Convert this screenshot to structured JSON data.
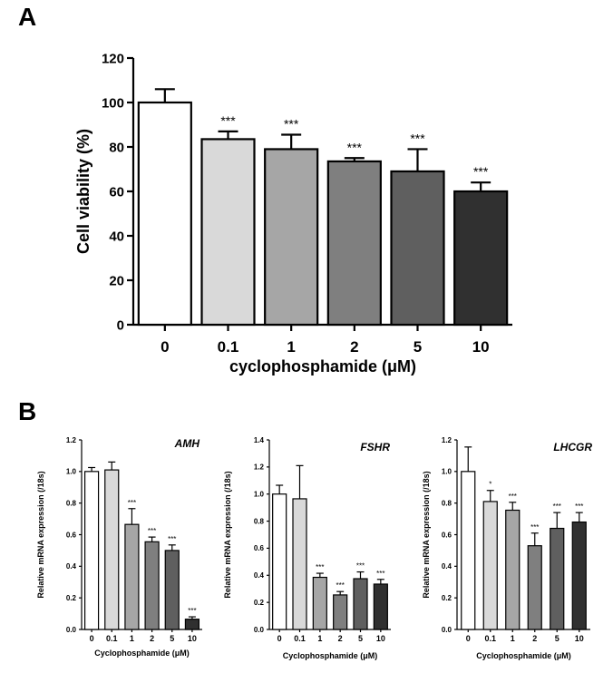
{
  "panels": {
    "a": {
      "letter": "A"
    },
    "b": {
      "letter": "B"
    }
  },
  "chart_data": [
    {
      "type": "bar",
      "ylabel": "Cell viability (%)",
      "xlabel": "cyclophosphamide (μM)",
      "ylim": [
        0,
        120
      ],
      "yticks": [
        0,
        20,
        40,
        60,
        80,
        100,
        120
      ],
      "categories": [
        "0",
        "0.1",
        "1",
        "2",
        "5",
        "10"
      ],
      "values": [
        100,
        83.5,
        79,
        73.5,
        69,
        60
      ],
      "errors": [
        6,
        3.5,
        6.5,
        1.5,
        10,
        4
      ],
      "significance": [
        "",
        "***",
        "***",
        "***",
        "***",
        "***"
      ],
      "bar_colors": [
        "#ffffff",
        "#d9d9d9",
        "#a6a6a6",
        "#7f7f7f",
        "#5f5f5f",
        "#303030"
      ]
    },
    {
      "type": "bar",
      "title": "AMH",
      "ylabel": "Relative mRNA expression (/18s)",
      "xlabel": "Cyclophosphamide (μM)",
      "ylim": [
        0,
        1.2
      ],
      "yticks": [
        "0.0",
        "0.2",
        "0.4",
        "0.6",
        "0.8",
        "1.0",
        "1.2"
      ],
      "categories": [
        "0",
        "0.1",
        "1",
        "2",
        "5",
        "10"
      ],
      "values": [
        1.0,
        1.01,
        0.665,
        0.555,
        0.5,
        0.065
      ],
      "errors": [
        0.025,
        0.05,
        0.1,
        0.03,
        0.035,
        0.015
      ],
      "significance": [
        "",
        "",
        "***",
        "***",
        "***",
        "***"
      ],
      "bar_colors": [
        "#ffffff",
        "#d9d9d9",
        "#a6a6a6",
        "#7f7f7f",
        "#5f5f5f",
        "#303030"
      ]
    },
    {
      "type": "bar",
      "title": "FSHR",
      "ylabel": "Relative mRNA expression (/18s)",
      "xlabel": "Cyclophosphamide (μM)",
      "ylim": [
        0,
        1.4
      ],
      "yticks": [
        "0.0",
        "0.2",
        "0.4",
        "0.6",
        "0.8",
        "1.0",
        "1.2",
        "1.4"
      ],
      "categories": [
        "0",
        "0.1",
        "1",
        "2",
        "5",
        "10"
      ],
      "values": [
        1.0,
        0.965,
        0.385,
        0.255,
        0.375,
        0.335
      ],
      "errors": [
        0.065,
        0.245,
        0.03,
        0.025,
        0.05,
        0.035
      ],
      "significance": [
        "",
        "",
        "***",
        "***",
        "***",
        "***"
      ],
      "bar_colors": [
        "#ffffff",
        "#d9d9d9",
        "#a6a6a6",
        "#7f7f7f",
        "#5f5f5f",
        "#303030"
      ]
    },
    {
      "type": "bar",
      "title": "LHCGR",
      "ylabel": "Relative mRNA expression (/18s)",
      "xlabel": "Cyclophosphamide (μM)",
      "ylim": [
        0,
        1.2
      ],
      "yticks": [
        "0.0",
        "0.2",
        "0.4",
        "0.6",
        "0.8",
        "1.0",
        "1.2"
      ],
      "categories": [
        "0",
        "0.1",
        "1",
        "2",
        "5",
        "10"
      ],
      "values": [
        1.0,
        0.81,
        0.755,
        0.53,
        0.64,
        0.68
      ],
      "errors": [
        0.155,
        0.07,
        0.05,
        0.08,
        0.1,
        0.06
      ],
      "significance": [
        "",
        "*",
        "***",
        "***",
        "***",
        "***"
      ],
      "bar_colors": [
        "#ffffff",
        "#d9d9d9",
        "#a6a6a6",
        "#7f7f7f",
        "#5f5f5f",
        "#303030"
      ]
    }
  ]
}
